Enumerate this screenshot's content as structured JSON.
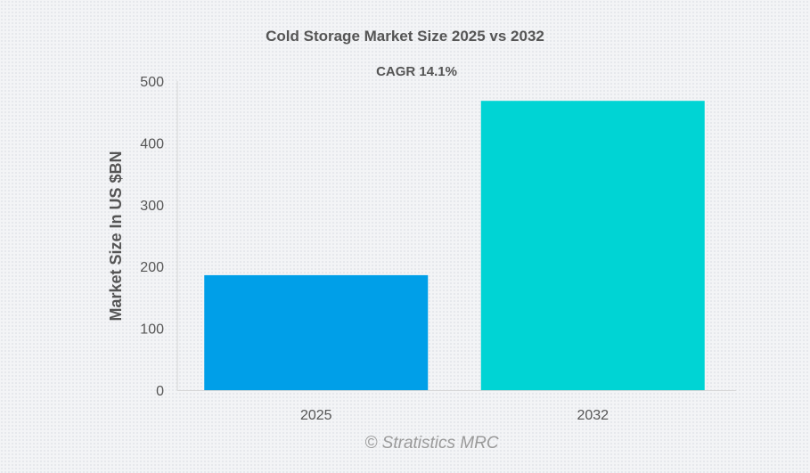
{
  "chart_data": {
    "type": "bar",
    "title": "Cold Storage Market Size 2025 vs 2032",
    "subtitle": "CAGR 14.1%",
    "categories": [
      "2025",
      "2032"
    ],
    "values": [
      186,
      468
    ],
    "colors": [
      "#009fe8",
      "#00d4d4"
    ],
    "xlabel": "",
    "ylabel": "Market Size In US $BN",
    "ylim": [
      0,
      500
    ],
    "yticks": [
      0,
      100,
      200,
      300,
      400,
      500
    ],
    "grid": false,
    "legend": "none"
  },
  "credit": "© Stratistics MRC"
}
